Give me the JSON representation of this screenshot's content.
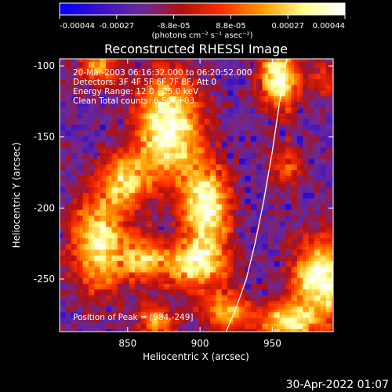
{
  "chart_data": {
    "type": "heatmap",
    "title": "Reconstructed RHESSI Image",
    "xlabel": "Heliocentric X (arcsec)",
    "ylabel": "Heliocentric Y (arcsec)",
    "xlim": [
      803,
      992
    ],
    "ylim": [
      -287,
      -95
    ],
    "x_ticks": [
      850,
      900,
      950
    ],
    "y_ticks": [
      -100,
      -150,
      -200,
      -250
    ],
    "colorbar": {
      "unit_label": "(photons cm⁻² s⁻¹ asec⁻²)",
      "ticks": [
        "-0.00044",
        "-0.00027",
        "-8.8e-05",
        "8.8e-05",
        "0.00027",
        "0.00044"
      ],
      "range": [
        -0.00044,
        0.00044
      ],
      "colors": [
        "#0000ff",
        "#3a10c8",
        "#6a2a9a",
        "#b01010",
        "#ff3000",
        "#ff9c00",
        "#ffff90",
        "#ffffff"
      ]
    },
    "info_lines": [
      "20-Mar-2003 06:16:32.000 to 06:20:52.000",
      "Detectors: 3F 4F 5F 6F 7F 8F, Att 0",
      "Energy Range: 12.0 - 25.0 keV",
      "Clean     Total counts: 6.50E+03"
    ],
    "peak_label": "Position of Peak = [984,-249]",
    "limb_curve": [
      [
        918,
        -287
      ],
      [
        925,
        -270
      ],
      [
        932,
        -250
      ],
      [
        938,
        -225
      ],
      [
        944,
        -195
      ],
      [
        950,
        -160
      ],
      [
        955,
        -125
      ],
      [
        960,
        -95
      ]
    ],
    "hotspots": [
      {
        "x": 878,
        "y": -142,
        "amp": 1.0,
        "sx": 16,
        "sy": 26
      },
      {
        "x": 955,
        "y": -108,
        "amp": 1.0,
        "sx": 10,
        "sy": 16
      },
      {
        "x": 904,
        "y": -200,
        "amp": 0.95,
        "sx": 12,
        "sy": 22
      },
      {
        "x": 848,
        "y": -180,
        "amp": 0.7,
        "sx": 12,
        "sy": 14
      },
      {
        "x": 830,
        "y": -225,
        "amp": 0.85,
        "sx": 14,
        "sy": 24
      },
      {
        "x": 895,
        "y": -240,
        "amp": 0.75,
        "sx": 18,
        "sy": 12
      },
      {
        "x": 918,
        "y": -272,
        "amp": 0.65,
        "sx": 12,
        "sy": 10
      },
      {
        "x": 984,
        "y": -249,
        "amp": 1.0,
        "sx": 14,
        "sy": 20
      },
      {
        "x": 870,
        "y": -280,
        "amp": 0.6,
        "sx": 10,
        "sy": 8
      },
      {
        "x": 960,
        "y": -280,
        "amp": 0.8,
        "sx": 14,
        "sy": 10
      },
      {
        "x": 860,
        "y": -235,
        "amp": 0.55,
        "sx": 10,
        "sy": 12
      },
      {
        "x": 830,
        "y": -100,
        "amp": 0.6,
        "sx": 10,
        "sy": 10
      },
      {
        "x": 960,
        "y": -170,
        "amp": 0.45,
        "sx": 10,
        "sy": 12
      },
      {
        "x": 988,
        "y": -110,
        "amp": 0.35,
        "sx": 8,
        "sy": 10
      }
    ]
  },
  "footer": {
    "timestamp": "30-Apr-2022 01:07"
  }
}
